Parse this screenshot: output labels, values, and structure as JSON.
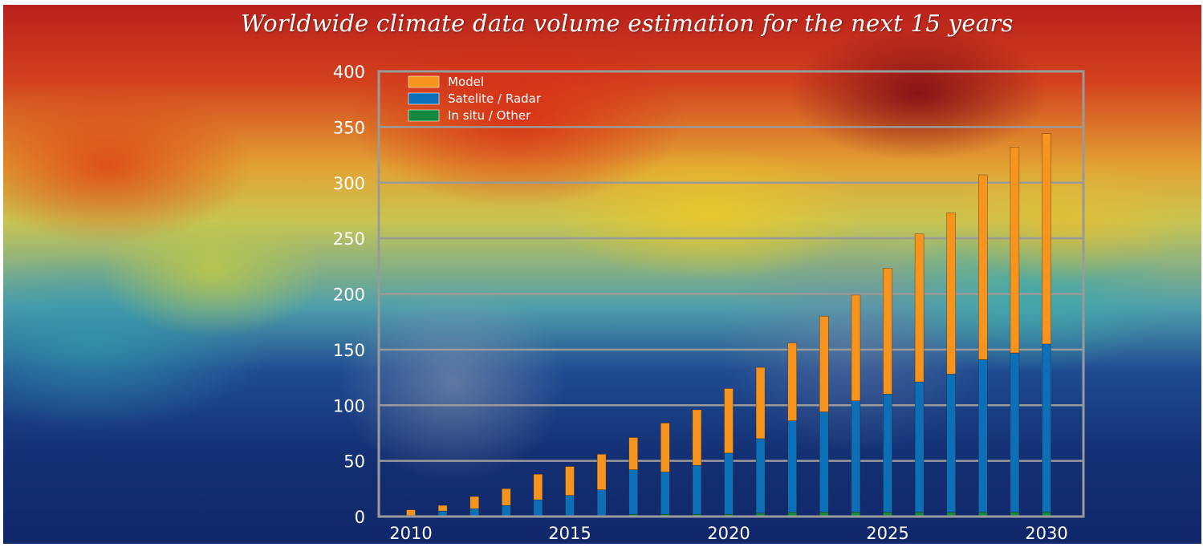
{
  "title": "Worldwide climate data volume estimation for the next 15 years",
  "colors": {
    "model": "#f7941d",
    "satellite": "#0c6fb7",
    "insitu": "#138a3f",
    "grid": "#9a9a9a",
    "text": "#ffffff"
  },
  "chart_data": {
    "type": "bar",
    "stacked": true,
    "title": "Worldwide climate data volume estimation for the next 15 years",
    "xlabel": "",
    "ylabel": "",
    "ylim": [
      0,
      400
    ],
    "yticks": [
      "0",
      "50",
      "100",
      "150",
      "200",
      "250",
      "300",
      "350",
      "400"
    ],
    "xticks": [
      "2010",
      "2015",
      "2020",
      "2025",
      "2030"
    ],
    "categories": [
      2010,
      2011,
      2012,
      2013,
      2014,
      2015,
      2016,
      2017,
      2018,
      2019,
      2020,
      2021,
      2022,
      2023,
      2024,
      2025,
      2026,
      2027,
      2028,
      2029,
      2030
    ],
    "series": [
      {
        "name": "In situ / Other",
        "color": "#138a3f",
        "values": [
          0.5,
          0.5,
          0.5,
          0.5,
          0.5,
          1,
          1,
          2,
          2,
          2,
          2,
          3,
          4,
          4,
          4,
          4,
          4,
          4,
          4,
          4,
          4
        ]
      },
      {
        "name": "Satelite / Radar",
        "color": "#0c6fb7",
        "values": [
          0.5,
          4.5,
          6.5,
          9.5,
          14.5,
          18,
          23,
          40,
          38,
          44,
          55,
          67,
          82,
          90,
          100,
          106,
          117,
          124,
          137,
          143,
          151
        ]
      },
      {
        "name": "Model",
        "color": "#f7941d",
        "values": [
          5,
          5,
          11,
          15,
          23,
          26,
          32,
          29,
          44,
          50,
          58,
          64,
          70,
          86,
          95,
          113,
          133,
          145,
          166,
          185,
          189
        ]
      }
    ],
    "legend": {
      "position": "top-left",
      "entries": [
        "Model",
        "Satelite / Radar",
        "In situ / Other"
      ]
    },
    "grid": true
  }
}
